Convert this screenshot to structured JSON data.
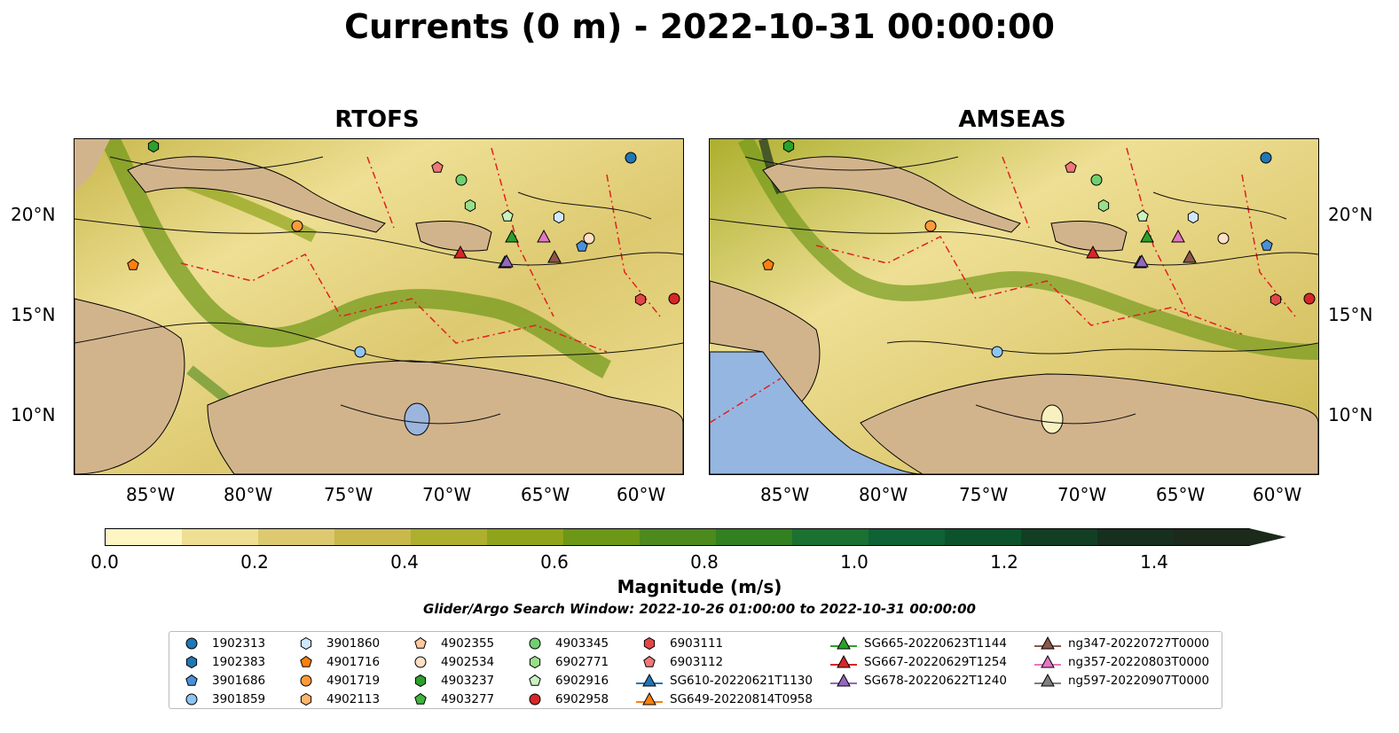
{
  "title": "Currents (0 m) - 2022-10-31 00:00:00",
  "panels": [
    {
      "title": "RTOFS"
    },
    {
      "title": "AMSEAS"
    }
  ],
  "lat_ticks": [
    "20°N",
    "15°N",
    "10°N"
  ],
  "lon_ticks": [
    "85°W",
    "80°W",
    "75°W",
    "70°W",
    "65°W",
    "60°W"
  ],
  "colorbar": {
    "label": "Magnitude (m/s)",
    "ticks": [
      "0.0",
      "0.2",
      "0.4",
      "0.6",
      "0.8",
      "1.0",
      "1.2",
      "1.4"
    ],
    "colors": [
      "#fdf6c3",
      "#eedf94",
      "#ddc970",
      "#c9b84c",
      "#adaf2e",
      "#8fa41b",
      "#6d9717",
      "#4d891c",
      "#32801f",
      "#1a7132",
      "#0f6234",
      "#0c532c",
      "#123f24",
      "#172f1e",
      "#1b2a1a"
    ]
  },
  "search_window": "Glider/Argo Search Window: 2022-10-26 01:00:00 to 2022-10-31 00:00:00",
  "legend": [
    {
      "label": "1902313",
      "marker": "circle",
      "color": "#1f77b4"
    },
    {
      "label": "1902383",
      "marker": "hexagon",
      "color": "#1f77b4"
    },
    {
      "label": "3901686",
      "marker": "pentagon",
      "color": "#4a90d9"
    },
    {
      "label": "3901859",
      "marker": "circle",
      "color": "#8ec5f0"
    },
    {
      "label": "3901860",
      "marker": "hexagon",
      "color": "#cfe8fb"
    },
    {
      "label": "4901716",
      "marker": "pentagon",
      "color": "#ff7f0e"
    },
    {
      "label": "4901719",
      "marker": "circle",
      "color": "#ff9a3c"
    },
    {
      "label": "4902113",
      "marker": "hexagon",
      "color": "#ffb46b"
    },
    {
      "label": "4902355",
      "marker": "pentagon",
      "color": "#ffc99a"
    },
    {
      "label": "4902534",
      "marker": "circle",
      "color": "#ffe0c4"
    },
    {
      "label": "4903237",
      "marker": "hexagon",
      "color": "#2ca02c"
    },
    {
      "label": "4903277",
      "marker": "pentagon",
      "color": "#3fb43f"
    },
    {
      "label": "4903345",
      "marker": "circle",
      "color": "#6fd06f"
    },
    {
      "label": "6902771",
      "marker": "hexagon",
      "color": "#98df8a"
    },
    {
      "label": "6902916",
      "marker": "pentagon",
      "color": "#c9f2c0"
    },
    {
      "label": "6902958",
      "marker": "circle",
      "color": "#d62728"
    },
    {
      "label": "6903111",
      "marker": "hexagon",
      "color": "#e04848"
    },
    {
      "label": "6903112",
      "marker": "pentagon",
      "color": "#f07878"
    },
    {
      "label": "SG610-20220621T1130",
      "marker": "triangle",
      "color": "#1f77b4"
    },
    {
      "label": "SG649-20220814T0958",
      "marker": "triangle",
      "color": "#ff7f0e"
    },
    {
      "label": "SG665-20220623T1144",
      "marker": "triangle",
      "color": "#2ca02c"
    },
    {
      "label": "SG667-20220629T1254",
      "marker": "triangle",
      "color": "#d62728"
    },
    {
      "label": "SG678-20220622T1240",
      "marker": "triangle",
      "color": "#9467bd"
    },
    {
      "label": "ng347-20220727T0000",
      "marker": "triangle",
      "color": "#8c564b"
    },
    {
      "label": "ng357-20220803T0000",
      "marker": "triangle",
      "color": "#e377c2"
    },
    {
      "label": "ng597-20220907T0000",
      "marker": "triangle",
      "color": "#7f7f7f"
    }
  ]
}
